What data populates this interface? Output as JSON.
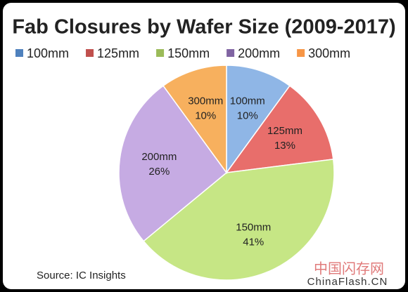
{
  "chart_data": {
    "type": "pie",
    "title": "Fab Closures by Wafer Size (2009-2017)",
    "categories": [
      "100mm",
      "125mm",
      "150mm",
      "200mm",
      "300mm"
    ],
    "values": [
      10,
      13,
      41,
      26,
      10
    ],
    "value_labels": [
      "10%",
      "13%",
      "41%",
      "26%",
      "10%"
    ],
    "colors": [
      "#8fb6e6",
      "#e86e6b",
      "#c6e685",
      "#c6abe3",
      "#f7b05e"
    ],
    "legend_colors": [
      "#4f81bd",
      "#c0504d",
      "#9bbb59",
      "#8064a2",
      "#f79646"
    ],
    "legend": "top",
    "source": "Source:  IC Insights"
  },
  "watermark": {
    "text": "中国闪存网",
    "url": "ChinaFlash.CN"
  }
}
